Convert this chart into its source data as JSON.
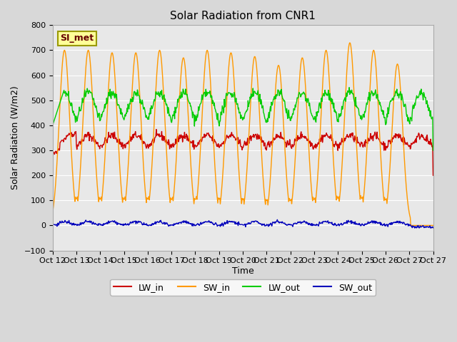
{
  "title": "Solar Radiation from CNR1",
  "ylabel": "Solar Radiation (W/m2)",
  "xlabel": "Time",
  "ylim": [
    -100,
    800
  ],
  "yticks": [
    -100,
    0,
    100,
    200,
    300,
    400,
    500,
    600,
    700,
    800
  ],
  "line_colors": {
    "LW_in": "#cc0000",
    "SW_in": "#ff9900",
    "LW_out": "#00cc00",
    "SW_out": "#0000bb"
  },
  "xtick_labels": [
    "Oct 12",
    "Oct 13",
    "Oct 14",
    "Oct 15",
    "Oct 16",
    "Oct 17",
    "Oct 18",
    "Oct 19",
    "Oct 20",
    "Oct 21",
    "Oct 22",
    "Oct 23",
    "Oct 24",
    "Oct 25",
    "Oct 26",
    "Oct 27",
    "Oct 27"
  ],
  "annotation_text": "SI_met",
  "annotation_bg": "#ffff99",
  "annotation_border": "#999900"
}
